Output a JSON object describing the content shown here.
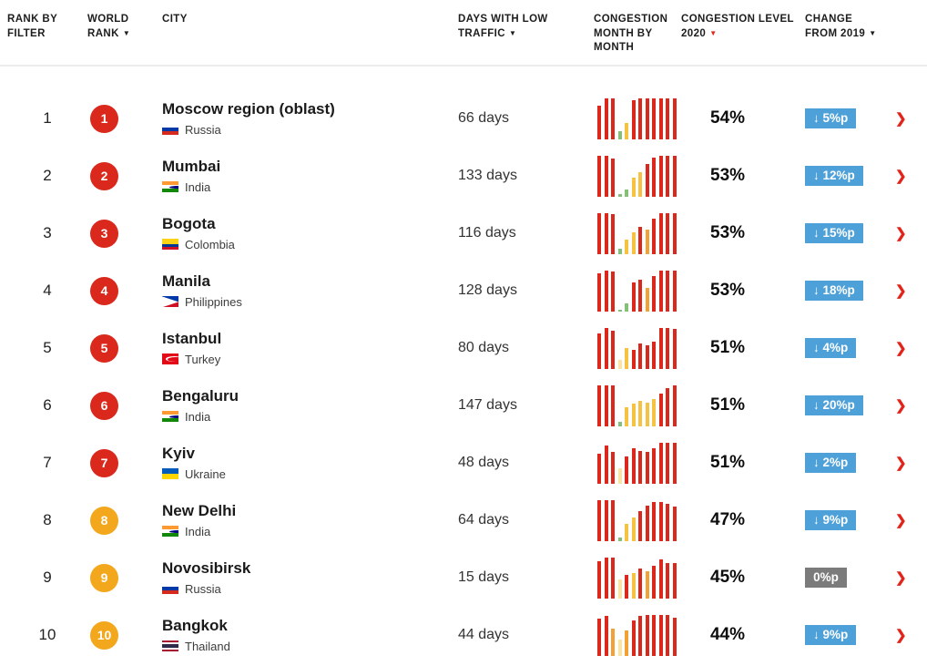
{
  "glyphs": {
    "sort": "▼",
    "down_arrow": "↓",
    "chevron": "❯"
  },
  "colors": {
    "badge_red": "#da291c",
    "badge_amber": "#f3a71c",
    "change_blue": "#4da0d8",
    "change_gray": "#7b7b7b",
    "accent_red": "#e1251b"
  },
  "palette": {
    "r": "#da291c",
    "o": "#f2a136",
    "y": "#f6c244",
    "p": "#fce3a0",
    "g": "#84c077"
  },
  "flags": {
    "russia": {
      "stripes": [
        [
          "#ffffff",
          1
        ],
        [
          "#0039a6",
          1
        ],
        [
          "#d52b1e",
          1
        ]
      ]
    },
    "india": {
      "stripes": [
        [
          "#ff9933",
          1
        ],
        [
          "#ffffff",
          1
        ],
        [
          "#138808",
          1
        ]
      ],
      "overlay": "chakra"
    },
    "colombia": {
      "stripes": [
        [
          "#fcd116",
          2
        ],
        [
          "#003893",
          1
        ],
        [
          "#ce1126",
          1
        ]
      ]
    },
    "philippines": {
      "stripes": [
        [
          "#0038a8",
          1
        ],
        [
          "#ce1126",
          1
        ]
      ],
      "overlay": "triangle"
    },
    "turkey": {
      "stripes": [
        [
          "#e30a17",
          1
        ]
      ],
      "overlay": "crescent"
    },
    "ukraine": {
      "stripes": [
        [
          "#005bbb",
          1
        ],
        [
          "#ffd500",
          1
        ]
      ]
    },
    "thailand": {
      "stripes": [
        [
          "#a51931",
          1
        ],
        [
          "#f4f5f8",
          1
        ],
        [
          "#2d2a4a",
          2
        ],
        [
          "#f4f5f8",
          1
        ],
        [
          "#a51931",
          1
        ]
      ]
    }
  },
  "header": {
    "columns": [
      {
        "label": "RANK BY FILTER",
        "sort": null
      },
      {
        "label": "WORLD RANK",
        "sort": "dark"
      },
      {
        "label": "CITY",
        "sort": null
      },
      {
        "label": "DAYS WITH LOW TRAFFIC",
        "sort": "dark"
      },
      {
        "label": "CONGESTION MONTH BY MONTH",
        "sort": null
      },
      {
        "label": "CONGESTION LEVEL 2020",
        "sort": "red"
      },
      {
        "label": "CHANGE FROM 2019",
        "sort": "dark"
      }
    ]
  },
  "chart_data": {
    "type": "bar",
    "note": "per-row mini charts: 12 monthly congestion bars (Jan-Dec 2020), heights as % of max, colors keyed to palette"
  },
  "rows": [
    {
      "rank_by_filter": "1",
      "world_rank": "1",
      "badge": "red",
      "city": "Moscow region (oblast)",
      "country": "Russia",
      "flag": "russia",
      "days": "66 days",
      "congestion": "54%",
      "change": {
        "down": true,
        "text": "5%p",
        "style": "blue"
      },
      "chart": {
        "values": [
          82,
          100,
          100,
          20,
          40,
          95,
          100,
          100,
          100,
          100,
          100,
          100
        ],
        "colors": [
          "r",
          "r",
          "r",
          "g",
          "y",
          "r",
          "r",
          "r",
          "r",
          "r",
          "r",
          "r"
        ]
      }
    },
    {
      "rank_by_filter": "2",
      "world_rank": "2",
      "badge": "red",
      "city": "Mumbai",
      "country": "India",
      "flag": "india",
      "days": "133 days",
      "congestion": "53%",
      "change": {
        "down": true,
        "text": "12%p",
        "style": "blue"
      },
      "chart": {
        "values": [
          100,
          100,
          92,
          6,
          16,
          45,
          60,
          78,
          95,
          100,
          100,
          100
        ],
        "colors": [
          "r",
          "r",
          "r",
          "g",
          "g",
          "y",
          "y",
          "r",
          "r",
          "r",
          "r",
          "r"
        ]
      }
    },
    {
      "rank_by_filter": "3",
      "world_rank": "3",
      "badge": "red",
      "city": "Bogota",
      "country": "Colombia",
      "flag": "colombia",
      "days": "116 days",
      "congestion": "53%",
      "change": {
        "down": true,
        "text": "15%p",
        "style": "blue"
      },
      "chart": {
        "values": [
          100,
          100,
          96,
          12,
          35,
          52,
          66,
          60,
          85,
          100,
          100,
          100
        ],
        "colors": [
          "r",
          "r",
          "r",
          "g",
          "y",
          "y",
          "r",
          "o",
          "r",
          "r",
          "r",
          "r"
        ]
      }
    },
    {
      "rank_by_filter": "4",
      "world_rank": "4",
      "badge": "red",
      "city": "Manila",
      "country": "Philippines",
      "flag": "philippines",
      "days": "128 days",
      "congestion": "53%",
      "change": {
        "down": true,
        "text": "18%p",
        "style": "blue"
      },
      "chart": {
        "values": [
          92,
          100,
          96,
          4,
          20,
          70,
          76,
          56,
          86,
          100,
          100,
          100
        ],
        "colors": [
          "r",
          "r",
          "r",
          "g",
          "g",
          "r",
          "r",
          "o",
          "r",
          "r",
          "r",
          "r"
        ]
      }
    },
    {
      "rank_by_filter": "5",
      "world_rank": "5",
      "badge": "red",
      "city": "Istanbul",
      "country": "Turkey",
      "flag": "turkey",
      "days": "80 days",
      "congestion": "51%",
      "change": {
        "down": true,
        "text": "4%p",
        "style": "blue"
      },
      "chart": {
        "values": [
          86,
          100,
          92,
          22,
          50,
          46,
          62,
          56,
          66,
          100,
          100,
          96
        ],
        "colors": [
          "r",
          "r",
          "r",
          "p",
          "y",
          "r",
          "r",
          "r",
          "r",
          "r",
          "r",
          "r"
        ]
      }
    },
    {
      "rank_by_filter": "6",
      "world_rank": "6",
      "badge": "red",
      "city": "Bengaluru",
      "country": "India",
      "flag": "india",
      "days": "147 days",
      "congestion": "51%",
      "change": {
        "down": true,
        "text": "20%p",
        "style": "blue"
      },
      "chart": {
        "values": [
          100,
          100,
          100,
          10,
          45,
          55,
          62,
          56,
          66,
          80,
          92,
          100
        ],
        "colors": [
          "r",
          "r",
          "r",
          "g",
          "y",
          "y",
          "y",
          "y",
          "y",
          "r",
          "r",
          "r"
        ]
      }
    },
    {
      "rank_by_filter": "7",
      "world_rank": "7",
      "badge": "red",
      "city": "Kyiv",
      "country": "Ukraine",
      "flag": "ukraine",
      "days": "48 days",
      "congestion": "51%",
      "change": {
        "down": true,
        "text": "2%p",
        "style": "blue"
      },
      "chart": {
        "values": [
          72,
          92,
          76,
          36,
          66,
          86,
          80,
          76,
          86,
          100,
          100,
          100
        ],
        "colors": [
          "r",
          "r",
          "r",
          "p",
          "r",
          "r",
          "r",
          "r",
          "r",
          "r",
          "r",
          "r"
        ]
      }
    },
    {
      "rank_by_filter": "8",
      "world_rank": "8",
      "badge": "amber",
      "city": "New Delhi",
      "country": "India",
      "flag": "india",
      "days": "64 days",
      "congestion": "47%",
      "change": {
        "down": true,
        "text": "9%p",
        "style": "blue"
      },
      "chart": {
        "values": [
          100,
          100,
          100,
          8,
          42,
          56,
          72,
          86,
          94,
          94,
          90,
          84
        ],
        "colors": [
          "r",
          "r",
          "r",
          "g",
          "y",
          "y",
          "r",
          "r",
          "r",
          "r",
          "r",
          "r"
        ]
      }
    },
    {
      "rank_by_filter": "9",
      "world_rank": "9",
      "badge": "amber",
      "city": "Novosibirsk",
      "country": "Russia",
      "flag": "russia",
      "days": "15 days",
      "congestion": "45%",
      "change": {
        "down": false,
        "text": "0%p",
        "style": "gray"
      },
      "chart": {
        "values": [
          90,
          100,
          100,
          46,
          56,
          62,
          72,
          66,
          80,
          95,
          86,
          86
        ],
        "colors": [
          "r",
          "r",
          "r",
          "p",
          "r",
          "y",
          "r",
          "o",
          "r",
          "r",
          "r",
          "r"
        ]
      }
    },
    {
      "rank_by_filter": "10",
      "world_rank": "10",
      "badge": "amber",
      "city": "Bangkok",
      "country": "Thailand",
      "flag": "thailand",
      "days": "44 days",
      "congestion": "44%",
      "change": {
        "down": true,
        "text": "9%p",
        "style": "blue"
      },
      "chart": {
        "values": [
          90,
          96,
          66,
          40,
          62,
          86,
          96,
          100,
          100,
          100,
          100,
          92
        ],
        "colors": [
          "r",
          "r",
          "o",
          "p",
          "o",
          "r",
          "r",
          "r",
          "r",
          "r",
          "r",
          "r"
        ]
      }
    }
  ]
}
